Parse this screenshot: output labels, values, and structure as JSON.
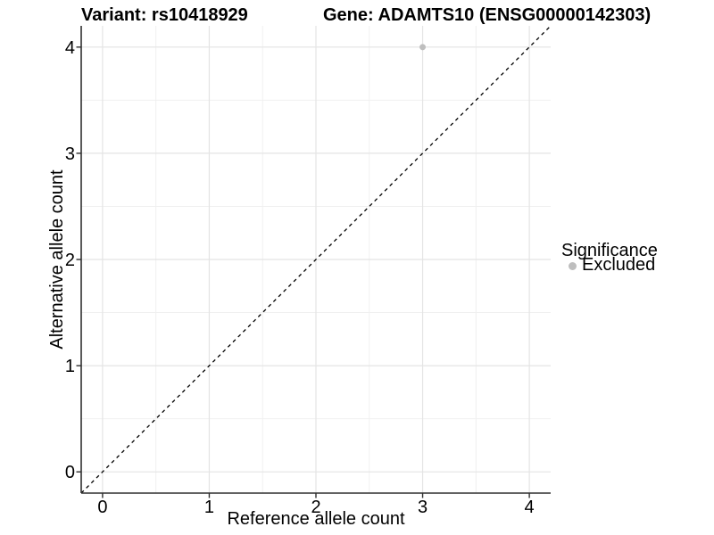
{
  "chart_data": {
    "type": "scatter",
    "titles": {
      "variant": "Variant: rs10418929",
      "gene": "Gene: ADAMTS10 (ENSG00000142303)"
    },
    "xlabel": "Reference allele count",
    "ylabel": "Alternative allele count",
    "xlim": [
      -0.2,
      4.2
    ],
    "ylim": [
      -0.2,
      4.2
    ],
    "x_ticks": [
      0,
      1,
      2,
      3,
      4
    ],
    "y_ticks": [
      0,
      1,
      2,
      3,
      4
    ],
    "x_minor_ticks": [
      0.5,
      1.5,
      2.5,
      3.5
    ],
    "y_minor_ticks": [
      0.5,
      1.5,
      2.5,
      3.5
    ],
    "grid": "major+minor",
    "identity_line": {
      "style": "dashed",
      "x1": -0.2,
      "y1": -0.2,
      "x2": 4.2,
      "y2": 4.2,
      "color": "#000000"
    },
    "points": [
      {
        "x": 3,
        "y": 4,
        "significance": "Excluded",
        "color": "#bebebe",
        "radius": 3.5
      }
    ],
    "legend": {
      "title": "Significance",
      "position": "right",
      "items": [
        {
          "label": "Excluded",
          "color": "#bebebe"
        }
      ]
    },
    "colors": {
      "background": "#ffffff",
      "grid_major": "#e4e4e4",
      "grid_minor": "#f0f0f0",
      "axis": "#2f2f2f",
      "tick": "#2f2f2f",
      "text": "#000000"
    }
  }
}
